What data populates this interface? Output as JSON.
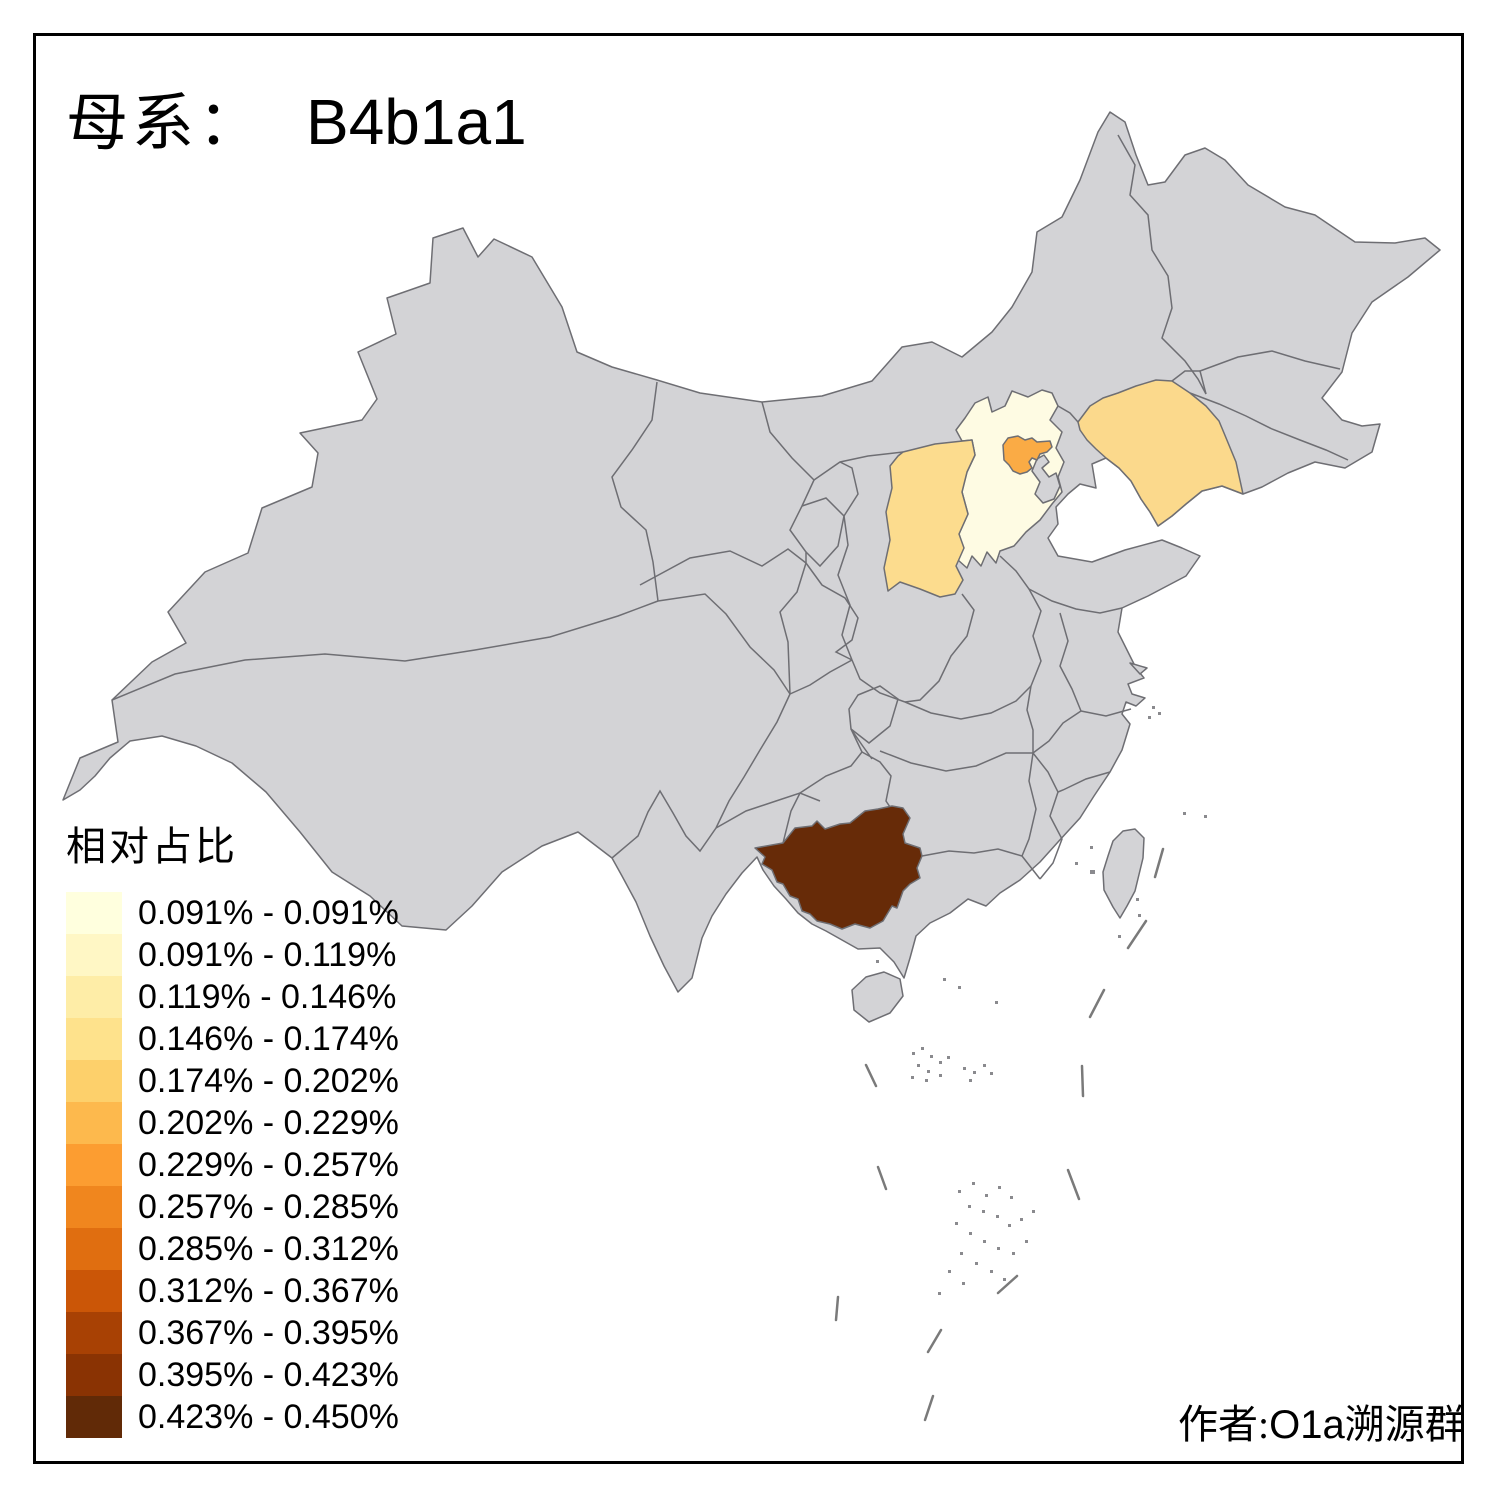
{
  "title": {
    "prefix": "母系：",
    "haplogroup": "B4b1a1"
  },
  "legend": {
    "title": "相对占比",
    "classes": [
      {
        "label": "0.091% - 0.091%",
        "color": "#FFFFDE"
      },
      {
        "label": "0.091% - 0.119%",
        "color": "#FFF7C5"
      },
      {
        "label": "0.119% - 0.146%",
        "color": "#FEEDA7"
      },
      {
        "label": "0.146% - 0.174%",
        "color": "#FEE28C"
      },
      {
        "label": "0.174% - 0.202%",
        "color": "#FDD06B"
      },
      {
        "label": "0.202% - 0.229%",
        "color": "#FDB94D"
      },
      {
        "label": "0.229% - 0.257%",
        "color": "#FC9D31"
      },
      {
        "label": "0.257% - 0.285%",
        "color": "#F0861E"
      },
      {
        "label": "0.285% - 0.312%",
        "color": "#E06E10"
      },
      {
        "label": "0.312% - 0.367%",
        "color": "#CB5607"
      },
      {
        "label": "0.367% - 0.395%",
        "color": "#A84104"
      },
      {
        "label": "0.395% - 0.423%",
        "color": "#8A3303"
      },
      {
        "label": "0.423% - 0.450%",
        "color": "#612A07"
      }
    ]
  },
  "credit": {
    "prefix_cn": "作者:",
    "group_latin": "O1a",
    "group_cn": "溯源群"
  },
  "map": {
    "no_data_fill": "#D3D3D6",
    "border_color": "#6E6E73",
    "sea_fill": "#FFFFFF",
    "frame_color": "#000000",
    "dash_line_color": "#7A7A7A",
    "regions": [
      {
        "id": "hebei",
        "name": "河北",
        "color": "#FEFBE3",
        "legend_class": "0.091% - 0.119%"
      },
      {
        "id": "shanxi",
        "name": "山西",
        "color": "#FCDC8E",
        "legend_class": "0.146% - 0.174%"
      },
      {
        "id": "liaoning",
        "name": "辽宁",
        "color": "#FBD98C",
        "legend_class": "0.146% - 0.174%"
      },
      {
        "id": "beijing",
        "name": "北京",
        "color": "#FAAB45",
        "legend_class": "0.202% - 0.229%"
      },
      {
        "id": "tianjin",
        "name": "天津",
        "color": "#D3D3D6",
        "legend_class": "no-data"
      },
      {
        "id": "guangxi",
        "name": "广西",
        "color": "#672B08",
        "legend_class": "0.423% - 0.450%"
      }
    ]
  }
}
